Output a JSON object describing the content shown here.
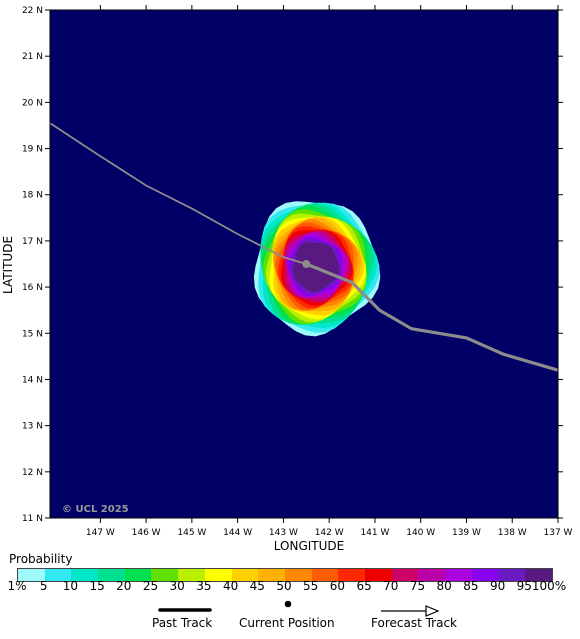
{
  "map": {
    "lat_labels": [
      "22 N",
      "21 N",
      "20 N",
      "19 N",
      "18 N",
      "17 N",
      "16 N",
      "15 N",
      "14 N",
      "13 N",
      "12 N",
      "11 N"
    ],
    "lon_labels": [
      "147 W",
      "146 W",
      "145 W",
      "144 W",
      "143 W",
      "142 W",
      "141 W",
      "140 W",
      "139 W",
      "138 W",
      "137 W"
    ],
    "x_axis_title": "LONGITUDE",
    "y_axis_title": "LATITUDE",
    "copyright": "© UCL 2025",
    "background_color": "#000066",
    "track_color": "#8c8c8c",
    "current_position": {
      "lon": -142.5,
      "lat": 16.5
    },
    "track": [
      {
        "lon": -148.1,
        "lat": 19.55
      },
      {
        "lon": -147.1,
        "lat": 18.9
      },
      {
        "lon": -146.0,
        "lat": 18.2
      },
      {
        "lon": -145.0,
        "lat": 17.7
      },
      {
        "lon": -144.0,
        "lat": 17.15
      },
      {
        "lon": -143.0,
        "lat": 16.65
      },
      {
        "lon": -142.5,
        "lat": 16.5
      },
      {
        "lon": -141.5,
        "lat": 16.1
      },
      {
        "lon": -140.9,
        "lat": 15.5
      },
      {
        "lon": -140.2,
        "lat": 15.1
      },
      {
        "lon": -139.0,
        "lat": 14.9
      },
      {
        "lon": -138.2,
        "lat": 14.55
      },
      {
        "lon": -137.0,
        "lat": 14.2
      }
    ],
    "probability_field": {
      "center": {
        "lon": -142.3,
        "lat": 16.45
      },
      "outer_radius_deg": 1.35,
      "inner_radius_deg": 0.5
    }
  },
  "legend": {
    "title": "Probability",
    "labels": [
      "1%",
      "5",
      "10",
      "15",
      "20",
      "25",
      "30",
      "35",
      "40",
      "45",
      "50",
      "55",
      "60",
      "65",
      "70",
      "75",
      "80",
      "85",
      "90",
      "95",
      "100%"
    ],
    "colors": [
      "#9ffafa",
      "#33e8f0",
      "#00e8c8",
      "#00e090",
      "#00e050",
      "#60e000",
      "#b8f000",
      "#ffff00",
      "#ffd000",
      "#ffb000",
      "#ff8800",
      "#ff5c00",
      "#ff2800",
      "#ee0000",
      "#cc0066",
      "#bb00aa",
      "#aa00dd",
      "#8800ee",
      "#6a1ac0",
      "#581a80"
    ]
  },
  "key": {
    "past_track": "Past Track",
    "current_position": "Current Position",
    "forecast_track": "Forecast Track"
  }
}
